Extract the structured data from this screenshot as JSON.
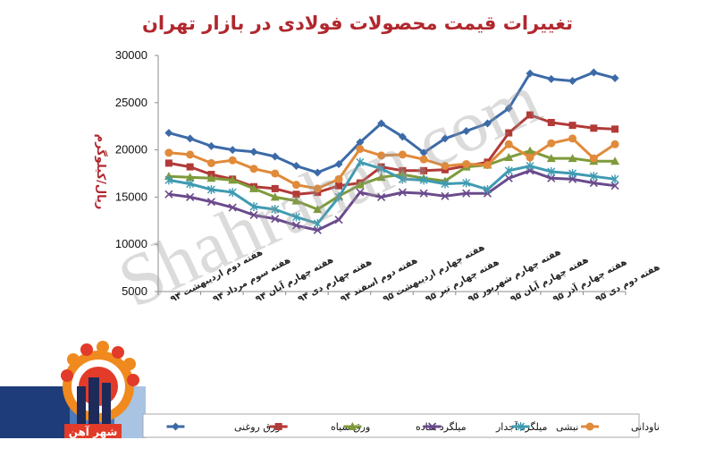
{
  "chart_data": {
    "type": "line",
    "title": "تغییرات قیمت محصولات فولادی در بازار تهران",
    "ylabel": "ریال/کیلوگرم",
    "xlabel": "",
    "ylim": [
      5000,
      30000
    ],
    "yticks": [
      5000,
      10000,
      15000,
      20000,
      25000,
      30000
    ],
    "grid": false,
    "legend_position": "bottom",
    "categories": [
      "هفته دوم اردیبهشت ۹۴",
      "",
      "هفته سوم مرداد ۹۴",
      "",
      "هفته چهارم آبان ۹۴",
      "",
      "هفته چهارم دی ۹۴",
      "",
      "هفته دوم اسفند ۹۴",
      "",
      "هفته چهارم اردیبهشت ۹۵",
      "",
      "هفته چهارم تیر ۹۵",
      "",
      "هفته چهارم شهریور ۹۵",
      "",
      "هفته چهارم آبان ۹۵",
      "",
      "هفته چهارم آذر ۹۵",
      "",
      "هفته دوم دی ۹۵",
      ""
    ],
    "series": [
      {
        "name": "ورق روغنی",
        "color": "#3c6aa8",
        "marker": "diamond",
        "values": [
          21800,
          21200,
          20400,
          20000,
          19800,
          19300,
          18300,
          17600,
          18500,
          20800,
          22800,
          21400,
          19700,
          21200,
          22000,
          22800,
          24400,
          28100,
          27500,
          27300,
          28200,
          27600
        ]
      },
      {
        "name": "ورق سیاه",
        "color": "#b23a37",
        "marker": "square",
        "values": [
          18600,
          18200,
          17400,
          16900,
          16100,
          15900,
          15300,
          15500,
          16200,
          16500,
          18200,
          17800,
          17800,
          17900,
          18300,
          18700,
          21800,
          23700,
          22900,
          22600,
          22300,
          22200
        ]
      },
      {
        "name": "میلگرد ساده",
        "color": "#7e9a3a",
        "marker": "triangle",
        "values": [
          17200,
          17100,
          17000,
          16800,
          15900,
          15000,
          14600,
          13700,
          15100,
          16300,
          17100,
          17400,
          17000,
          16700,
          18200,
          18400,
          19200,
          19900,
          19100,
          19100,
          18800,
          18800
        ]
      },
      {
        "name": "میلگرد آجدار",
        "color": "#6a4a8c",
        "marker": "x",
        "values": [
          15300,
          15000,
          14500,
          13900,
          13100,
          12700,
          12000,
          11500,
          12600,
          15500,
          15000,
          15500,
          15400,
          15100,
          15400,
          15400,
          17000,
          17800,
          17000,
          16900,
          16500,
          16200
        ]
      },
      {
        "name": "نبشی",
        "color": "#3e9bb2",
        "marker": "star",
        "values": [
          16800,
          16400,
          15800,
          15500,
          14000,
          13700,
          12900,
          12200,
          15000,
          18700,
          18000,
          16900,
          16800,
          16400,
          16500,
          15800,
          17800,
          18300,
          17700,
          17500,
          17200,
          16900
        ]
      },
      {
        "name": "ناودانی",
        "color": "#e08a3a",
        "marker": "circle",
        "values": [
          19700,
          19500,
          18600,
          18900,
          18000,
          17500,
          16300,
          15900,
          16900,
          20100,
          19400,
          19500,
          19000,
          18300,
          18500,
          18400,
          20600,
          19200,
          20700,
          21200,
          19100,
          20600
        ]
      }
    ]
  },
  "watermark": {
    "text": "Shahrahan.com"
  },
  "logo": {
    "alt_text": "شهر آهن"
  }
}
